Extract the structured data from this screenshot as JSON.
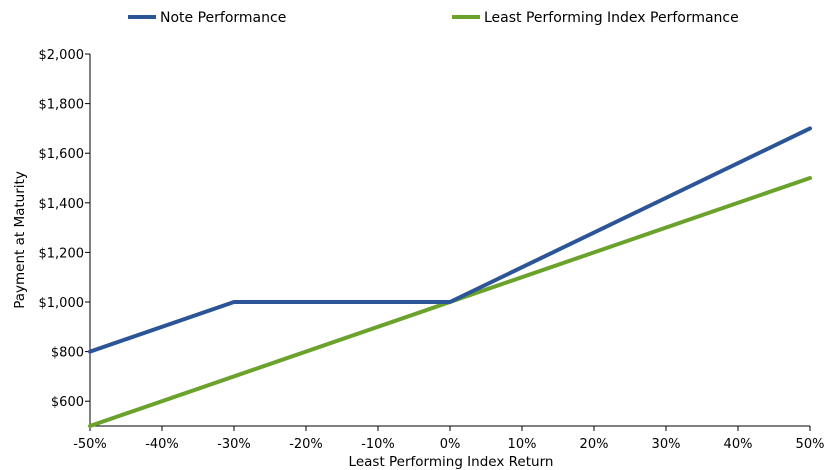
{
  "chart_data": {
    "type": "line",
    "title": "",
    "xlabel": "Least Performing Index Return",
    "ylabel": "Payment at Maturity",
    "x_ticks": [
      "-50%",
      "-40%",
      "-30%",
      "-20%",
      "-10%",
      "0%",
      "10%",
      "20%",
      "30%",
      "40%",
      "50%"
    ],
    "x_tick_values": [
      -50,
      -40,
      -30,
      -20,
      -10,
      0,
      10,
      20,
      30,
      40,
      50
    ],
    "y_ticks": [
      "$600",
      "$800",
      "$1,000",
      "$1,200",
      "$1,400",
      "$1,600",
      "$1,800",
      "$2,000"
    ],
    "y_tick_values": [
      600,
      800,
      1000,
      1200,
      1400,
      1600,
      1800,
      2000
    ],
    "xlim": [
      -50,
      50
    ],
    "ylim": [
      500,
      2000
    ],
    "grid": false,
    "legend_position": "top",
    "series": [
      {
        "name": "Note Performance",
        "color": "#2c5597",
        "x": [
          -50,
          -30,
          0,
          50
        ],
        "y": [
          800,
          1000,
          1000,
          1700
        ]
      },
      {
        "name": "Least Performing Index Performance",
        "color": "#6aa22c",
        "x": [
          -50,
          50
        ],
        "y": [
          500,
          1500
        ]
      }
    ]
  }
}
